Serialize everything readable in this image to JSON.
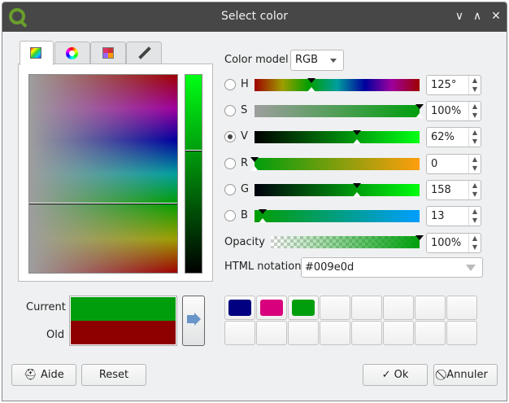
{
  "window": {
    "title": "Select color",
    "controls": [
      "∨",
      "∧",
      "✕"
    ]
  },
  "tabs": [
    {
      "name": "color-ramp"
    },
    {
      "name": "color-wheel"
    },
    {
      "name": "swatches"
    },
    {
      "name": "color-picker"
    }
  ],
  "color_model": {
    "label": "Color model",
    "value": "RGB"
  },
  "channels": [
    {
      "key": "H",
      "value": "125°",
      "fraction": 0.347,
      "checked": false
    },
    {
      "key": "S",
      "value": "100%",
      "fraction": 1.0,
      "checked": false
    },
    {
      "key": "V",
      "value": "62%",
      "fraction": 0.62,
      "checked": true
    },
    {
      "key": "R",
      "value": "0",
      "fraction": 0.0,
      "checked": false
    },
    {
      "key": "G",
      "value": "158",
      "fraction": 0.62,
      "checked": false
    },
    {
      "key": "B",
      "value": "13",
      "fraction": 0.05,
      "checked": false
    }
  ],
  "opacity": {
    "label": "Opacity",
    "value": "100%",
    "fraction": 1.0
  },
  "html_notation": {
    "label": "HTML notation",
    "value": "#009e0d"
  },
  "preview": {
    "current_label": "Current",
    "old_label": "Old",
    "current_color": "#009e0d",
    "old_color": "#8e0000"
  },
  "swatches": [
    "#000080",
    "#d9007e",
    "#009e0d",
    "",
    "",
    "",
    "",
    "",
    "",
    "",
    "",
    "",
    "",
    "",
    "",
    ""
  ],
  "buttons": {
    "help": "Aide",
    "reset": "Reset",
    "ok": "Ok",
    "cancel": "Annuler"
  }
}
